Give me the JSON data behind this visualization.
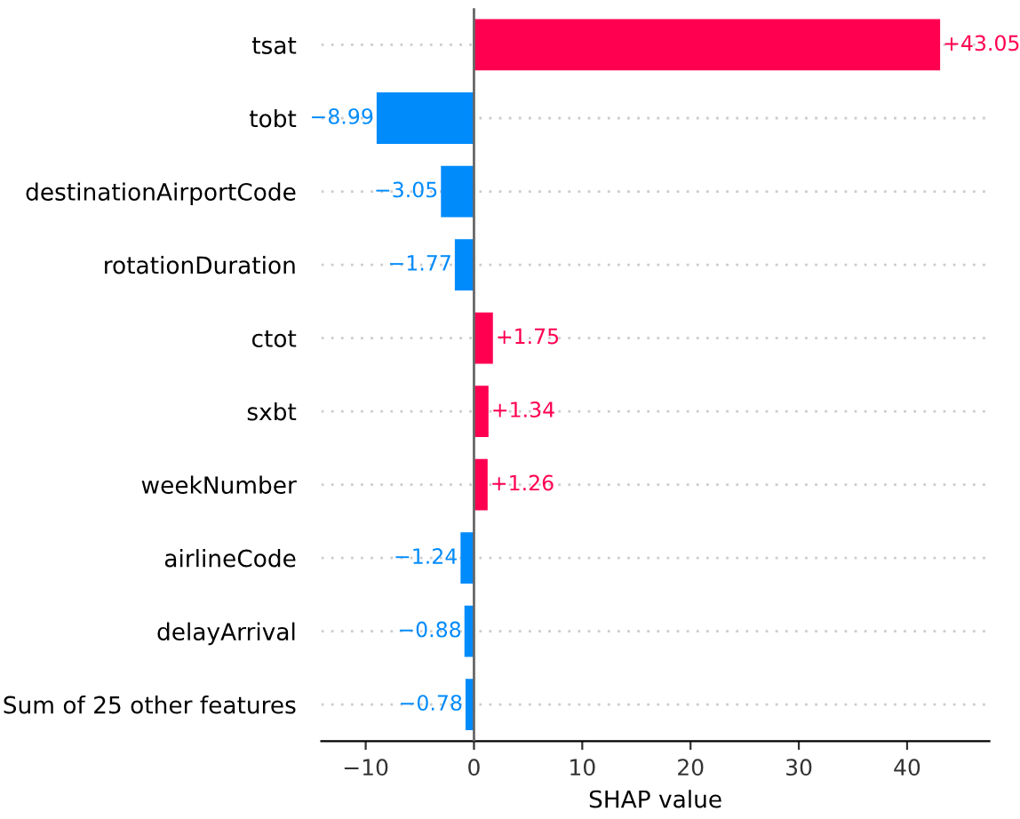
{
  "chart_data": {
    "type": "bar",
    "orientation": "horizontal",
    "xlabel": "SHAP value",
    "categories": [
      "tsat",
      "tobt",
      "destinationAirportCode",
      "rotationDuration",
      "ctot",
      "sxbt",
      "weekNumber",
      "airlineCode",
      "delayArrival",
      "Sum of 25 other features"
    ],
    "values": [
      43.05,
      -8.99,
      -3.05,
      -1.77,
      1.75,
      1.34,
      1.26,
      -1.24,
      -0.88,
      -0.78
    ],
    "colors": [
      "#ff0051",
      "#008bfb",
      "#008bfb",
      "#008bfb",
      "#ff0051",
      "#ff0051",
      "#ff0051",
      "#008bfb",
      "#008bfb",
      "#008bfb"
    ],
    "value_labels": [
      "+43.05",
      "−8.99",
      "−3.05",
      "−1.77",
      "+1.75",
      "+1.34",
      "+1.26",
      "−1.24",
      "−0.88",
      "−0.78"
    ],
    "xlim": [
      -14.1,
      47.6
    ],
    "xticks": [
      -10,
      0,
      10,
      20,
      30,
      40
    ],
    "ref_lines": [
      {
        "axis": "x",
        "value": 0,
        "color": "#666666"
      }
    ],
    "grid": "y",
    "legend": false
  }
}
